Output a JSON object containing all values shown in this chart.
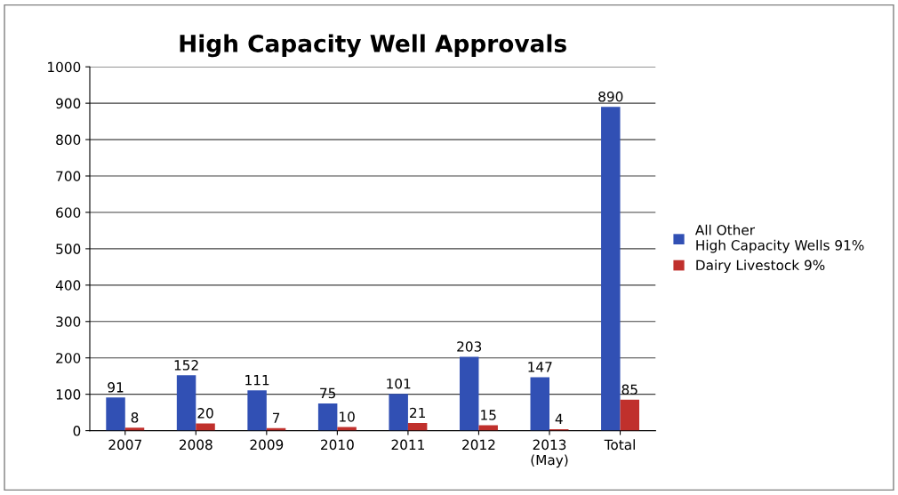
{
  "chart_data": {
    "type": "bar",
    "title": "High Capacity Well Approvals",
    "categories": [
      "2007",
      "2008",
      "2009",
      "2010",
      "2011",
      "2012",
      "2013\n(May)",
      "Total"
    ],
    "series": [
      {
        "name": "All Other\nHigh Capacity Wells 91%",
        "color": "#3150b4",
        "values": [
          91,
          152,
          111,
          75,
          101,
          203,
          147,
          890
        ]
      },
      {
        "name": "Dairy Livestock 9%",
        "color": "#c0302c",
        "values": [
          8,
          20,
          7,
          10,
          21,
          15,
          4,
          85
        ]
      }
    ],
    "ylim": [
      0,
      1000
    ],
    "yticks": [
      0,
      100,
      200,
      300,
      400,
      500,
      600,
      700,
      800,
      900,
      1000
    ],
    "grid": "y",
    "legend": "right",
    "data_labels": true
  }
}
